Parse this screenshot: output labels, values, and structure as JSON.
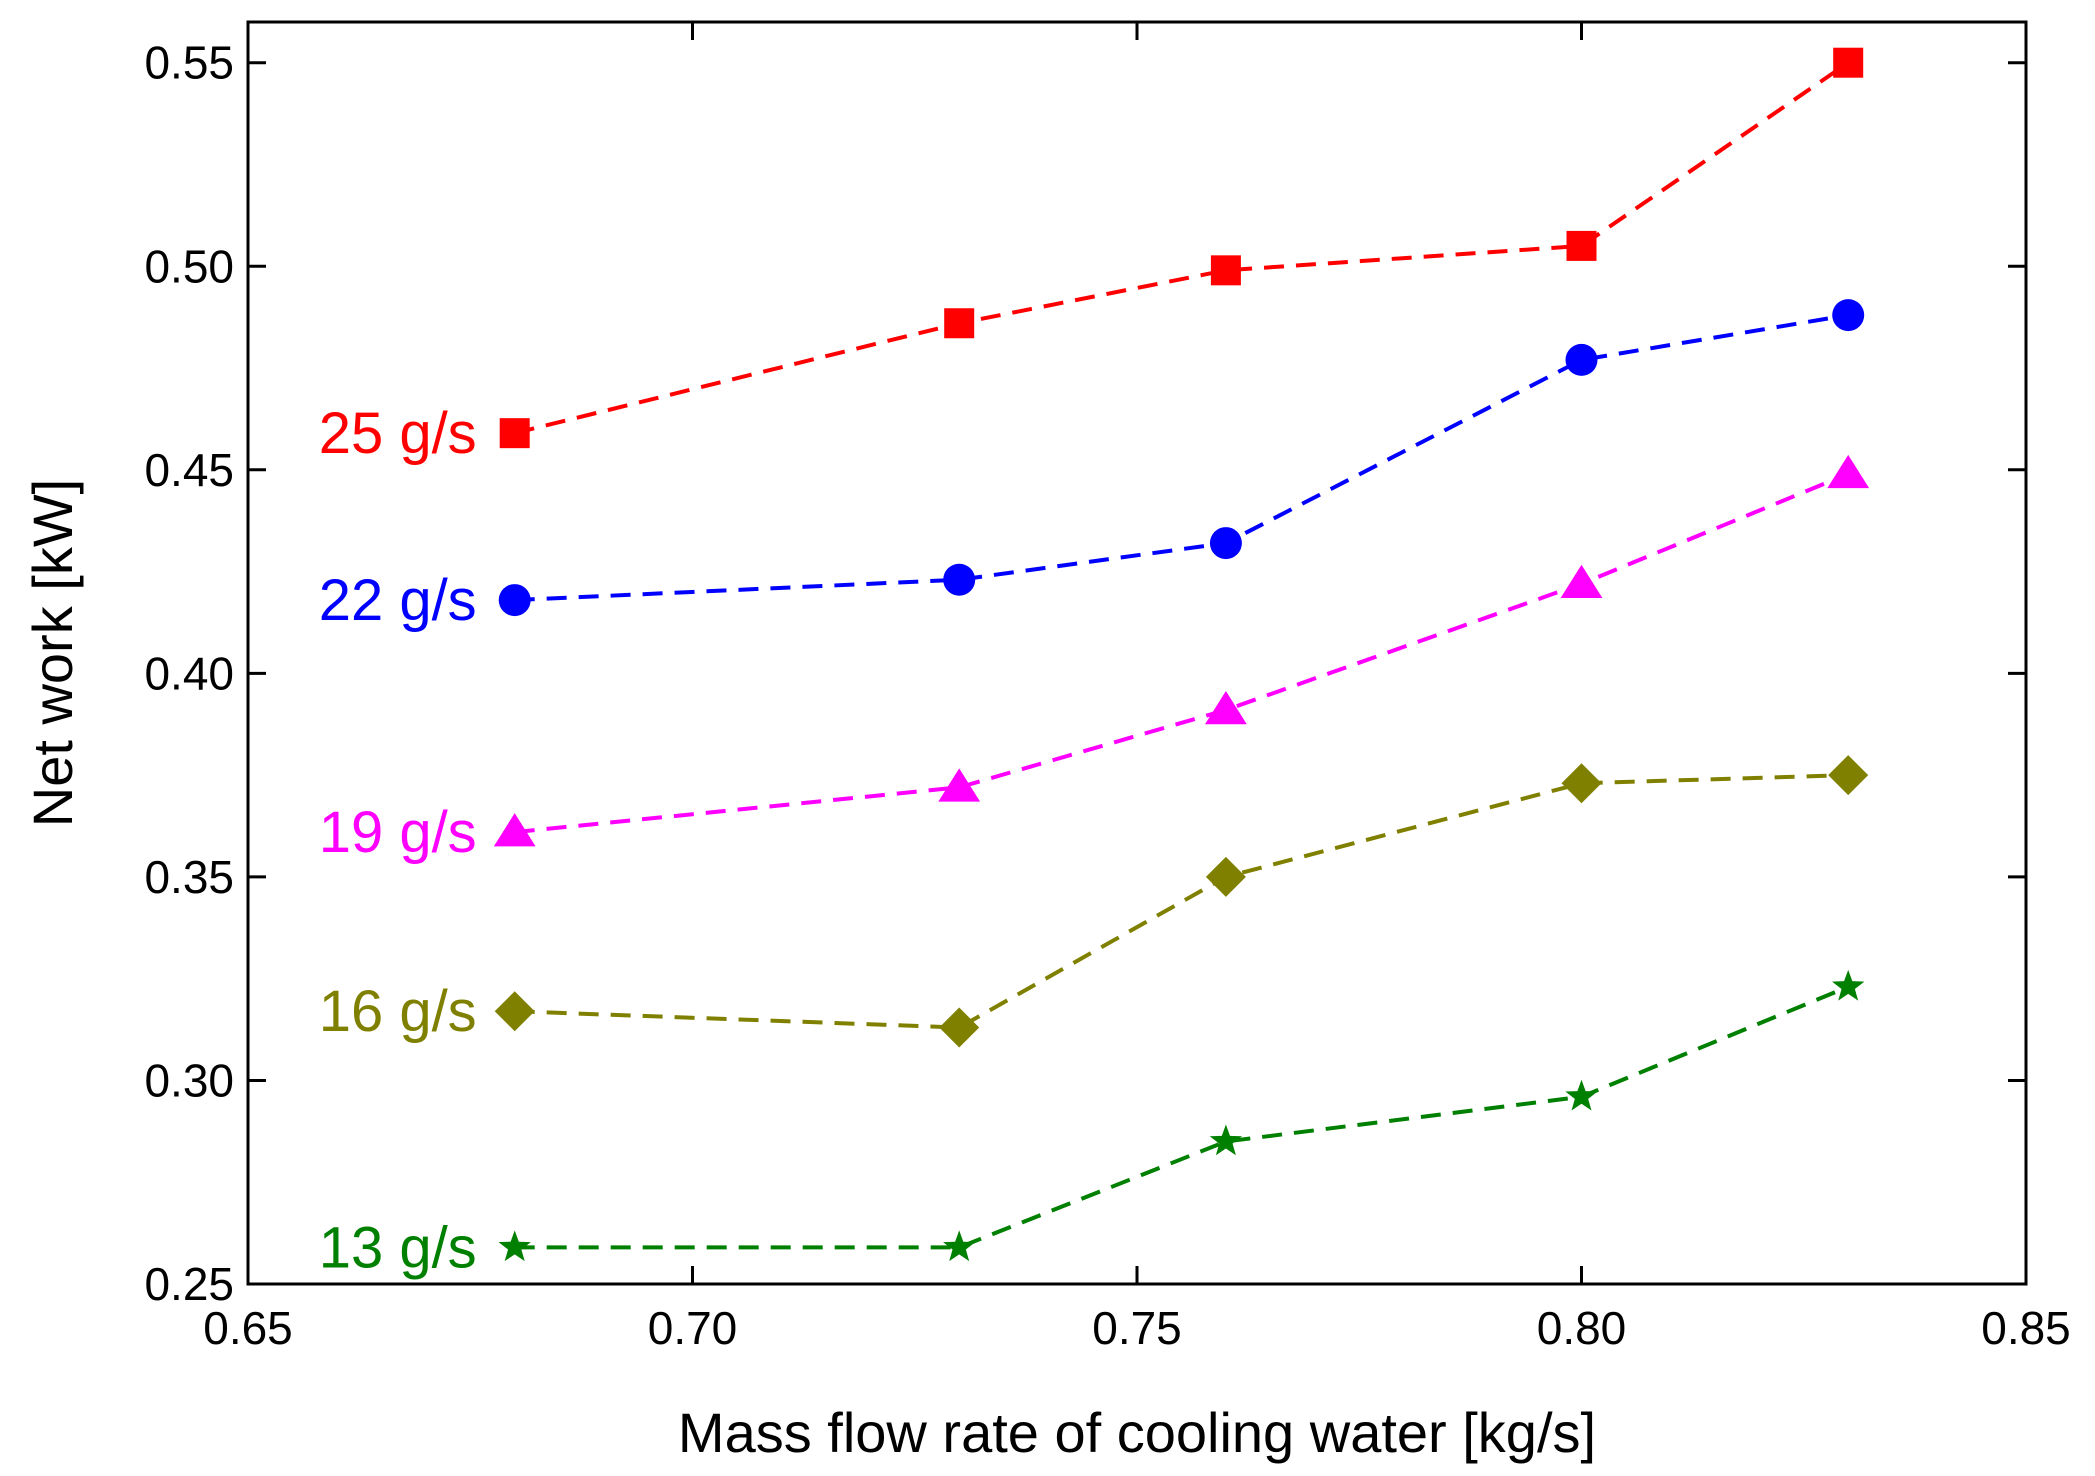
{
  "chart_data": {
    "type": "line",
    "title": "",
    "xlabel": "Mass flow rate of cooling water [kg/s]",
    "ylabel": "Net work [kW]",
    "xlim": [
      0.65,
      0.85
    ],
    "ylim": [
      0.25,
      0.56
    ],
    "xticks": [
      0.65,
      0.7,
      0.75,
      0.8,
      0.85
    ],
    "yticks": [
      0.25,
      0.3,
      0.35,
      0.4,
      0.45,
      0.5,
      0.55
    ],
    "xtick_labels": [
      "0.65",
      "0.70",
      "0.75",
      "0.80",
      "0.85"
    ],
    "ytick_labels": [
      "0.25",
      "0.30",
      "0.35",
      "0.40",
      "0.45",
      "0.50",
      "0.55"
    ],
    "x": [
      0.68,
      0.73,
      0.76,
      0.8,
      0.83
    ],
    "series": [
      {
        "name": "25 g/s",
        "color": "#ff0000",
        "marker": "square",
        "values": [
          0.459,
          0.486,
          0.499,
          0.505,
          0.55
        ]
      },
      {
        "name": "22 g/s",
        "color": "#0000ff",
        "marker": "circle",
        "values": [
          0.418,
          0.423,
          0.432,
          0.477,
          0.488
        ]
      },
      {
        "name": "19 g/s",
        "color": "#ff00ff",
        "marker": "triangle",
        "values": [
          0.361,
          0.372,
          0.391,
          0.422,
          0.449
        ]
      },
      {
        "name": "16 g/s",
        "color": "#808000",
        "marker": "diamond",
        "values": [
          0.317,
          0.313,
          0.35,
          0.373,
          0.375
        ]
      },
      {
        "name": "13 g/s",
        "color": "#008000",
        "marker": "star",
        "values": [
          0.259,
          0.259,
          0.285,
          0.296,
          0.323
        ]
      }
    ]
  }
}
